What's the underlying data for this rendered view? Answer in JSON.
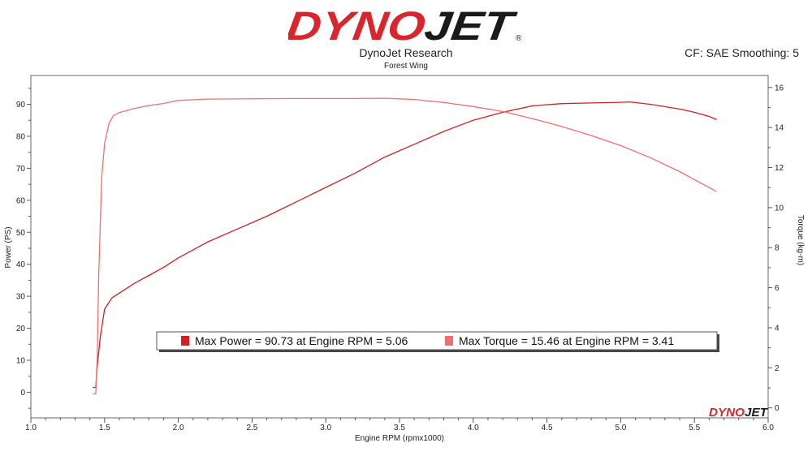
{
  "header": {
    "logo_text": "DYNOJET",
    "title": "DynoJet Research",
    "subtitle": "Forest Wing",
    "cf_info": "CF: SAE Smoothing: 5"
  },
  "watermark": {
    "text": "DYNOJET"
  },
  "colors": {
    "power": "#d42020",
    "torque": "#f07070",
    "logo_red": "#d8262c",
    "logo_black": "#1a1a1a"
  },
  "chart_data": {
    "type": "line",
    "title": "DynoJet Research",
    "subtitle": "Forest Wing",
    "xlabel": "Engine RPM (rpmx1000)",
    "ylabel": "Power (PS)",
    "y2label": "Torque (kg-m)",
    "xlim": [
      1.0,
      6.0
    ],
    "ylim": [
      -8,
      99
    ],
    "y2lim": [
      -0.5,
      16.6
    ],
    "x_ticks": [
      "1.0",
      "1.5",
      "2.0",
      "2.5",
      "3.0",
      "3.5",
      "4.0",
      "4.5",
      "5.0",
      "5.5",
      "6.0"
    ],
    "y_ticks": [
      "0",
      "10",
      "20",
      "30",
      "40",
      "50",
      "60",
      "70",
      "80",
      "90"
    ],
    "y2_ticks": [
      "0",
      "2",
      "4",
      "6",
      "8",
      "10",
      "12",
      "14",
      "16"
    ],
    "grid": false,
    "series": [
      {
        "name": "Power",
        "axis": "left",
        "x": [
          1.42,
          1.44,
          1.45,
          1.47,
          1.5,
          1.55,
          1.6,
          1.7,
          1.8,
          1.9,
          2.0,
          2.2,
          2.4,
          2.6,
          2.8,
          3.0,
          3.2,
          3.4,
          3.6,
          3.8,
          4.0,
          4.2,
          4.4,
          4.6,
          4.8,
          5.0,
          5.06,
          5.2,
          5.4,
          5.5,
          5.6,
          5.65
        ],
        "y": [
          1.5,
          1.5,
          8,
          17,
          26,
          29.5,
          31,
          34,
          36.5,
          39,
          42,
          47,
          51,
          55,
          59.5,
          64,
          68.5,
          73.5,
          77.5,
          81.5,
          85,
          87.5,
          89.5,
          90.2,
          90.4,
          90.6,
          90.73,
          90,
          88.5,
          87.5,
          86.2,
          85.2
        ]
      },
      {
        "name": "Torque",
        "axis": "right",
        "x": [
          1.42,
          1.44,
          1.45,
          1.46,
          1.48,
          1.5,
          1.53,
          1.56,
          1.6,
          1.7,
          1.8,
          1.9,
          2.0,
          2.2,
          2.4,
          2.6,
          2.8,
          3.0,
          3.2,
          3.41,
          3.6,
          3.8,
          4.0,
          4.2,
          4.4,
          4.6,
          4.8,
          5.0,
          5.2,
          5.4,
          5.6,
          5.65
        ],
        "y": [
          0.7,
          0.7,
          2.5,
          6.5,
          11.5,
          13.2,
          14.2,
          14.6,
          14.75,
          14.95,
          15.1,
          15.2,
          15.35,
          15.42,
          15.43,
          15.44,
          15.45,
          15.45,
          15.45,
          15.46,
          15.4,
          15.25,
          15.05,
          14.8,
          14.45,
          14.05,
          13.6,
          13.1,
          12.5,
          11.8,
          11.0,
          10.8
        ]
      }
    ],
    "legend": {
      "position": "bottom-center",
      "entries": [
        "Max Power = 90.73 at Engine RPM = 5.06",
        "Max Torque = 15.46 at Engine RPM = 3.41"
      ]
    }
  }
}
